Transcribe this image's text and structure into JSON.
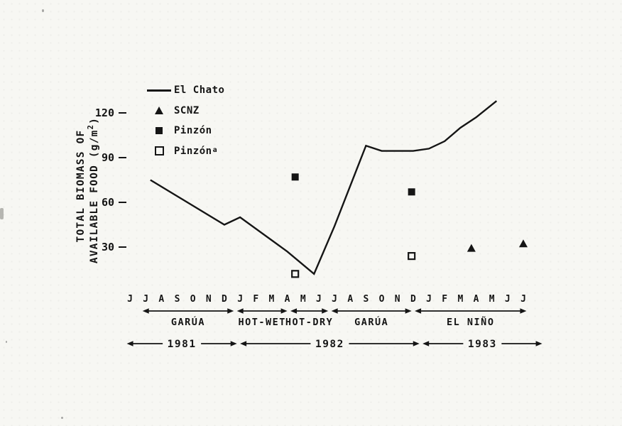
{
  "figure": {
    "background": "#f7f7f3",
    "ink": "#151515"
  },
  "chart_data": {
    "type": "line",
    "title": "",
    "ylabel_line1": "TOTAL BIOMASS OF",
    "ylabel_line2_pre": "AVAILABLE FOOD (g/m",
    "ylabel_sup": "2",
    "ylabel_line2_post": ")",
    "y_ticks": [
      30,
      60,
      90,
      120
    ],
    "ylim": [
      0,
      135
    ],
    "grid": false,
    "legend_position": "top-left",
    "month_labels": [
      "J",
      "J",
      "A",
      "S",
      "O",
      "N",
      "D",
      "J",
      "F",
      "M",
      "A",
      "M",
      "J",
      "J",
      "A",
      "S",
      "O",
      "N",
      "D",
      "J",
      "F",
      "M",
      "A",
      "M",
      "J",
      "J"
    ],
    "series": [
      {
        "name": "El Chato",
        "type": "line",
        "points": [
          [
            1.3,
            75
          ],
          [
            6,
            45
          ],
          [
            7,
            50
          ],
          [
            10,
            27
          ],
          [
            11.7,
            12
          ],
          [
            13,
            44
          ],
          [
            15,
            98
          ],
          [
            16,
            94.5
          ],
          [
            18,
            94.5
          ],
          [
            19,
            96
          ],
          [
            20,
            101
          ],
          [
            21,
            110
          ],
          [
            22,
            117
          ],
          [
            23.3,
            128
          ]
        ]
      },
      {
        "name": "SCNZ",
        "type": "scatter",
        "marker": "triangle-filled",
        "points": [
          [
            21.7,
            29
          ],
          [
            25,
            32
          ]
        ]
      },
      {
        "name": "Pinzón",
        "type": "scatter",
        "marker": "square-filled",
        "points": [
          [
            10.5,
            77
          ],
          [
            17.9,
            67
          ]
        ]
      },
      {
        "name": "Pinzón",
        "sup": "a",
        "type": "scatter",
        "marker": "square-open",
        "points": [
          [
            10.5,
            12
          ],
          [
            17.9,
            24
          ]
        ]
      }
    ],
    "legend": [
      {
        "label": "El Chato",
        "symbol": "line"
      },
      {
        "label": "SCNZ",
        "symbol": "triangle-filled"
      },
      {
        "label": "Pinzón",
        "symbol": "square-filled"
      },
      {
        "label": "Pinzón",
        "sup": "a",
        "symbol": "square-open"
      }
    ],
    "seasons": [
      {
        "label": "GARÚA",
        "from": 0.8,
        "to": 6.6
      },
      {
        "label": "HOT-WET",
        "from": 6.8,
        "to": 10.0
      },
      {
        "label": "HOT-DRY",
        "from": 10.2,
        "to": 12.6
      },
      {
        "label": "GARÚA",
        "from": 12.8,
        "to": 17.9
      },
      {
        "label": "EL NIÑO",
        "from": 18.1,
        "to": 25.2
      }
    ],
    "years": [
      {
        "label": "1981",
        "from": -0.2,
        "to": 6.8
      },
      {
        "label": "1982",
        "from": 7.0,
        "to": 18.4
      },
      {
        "label": "1983",
        "from": 18.6,
        "to": 26.2
      }
    ]
  }
}
